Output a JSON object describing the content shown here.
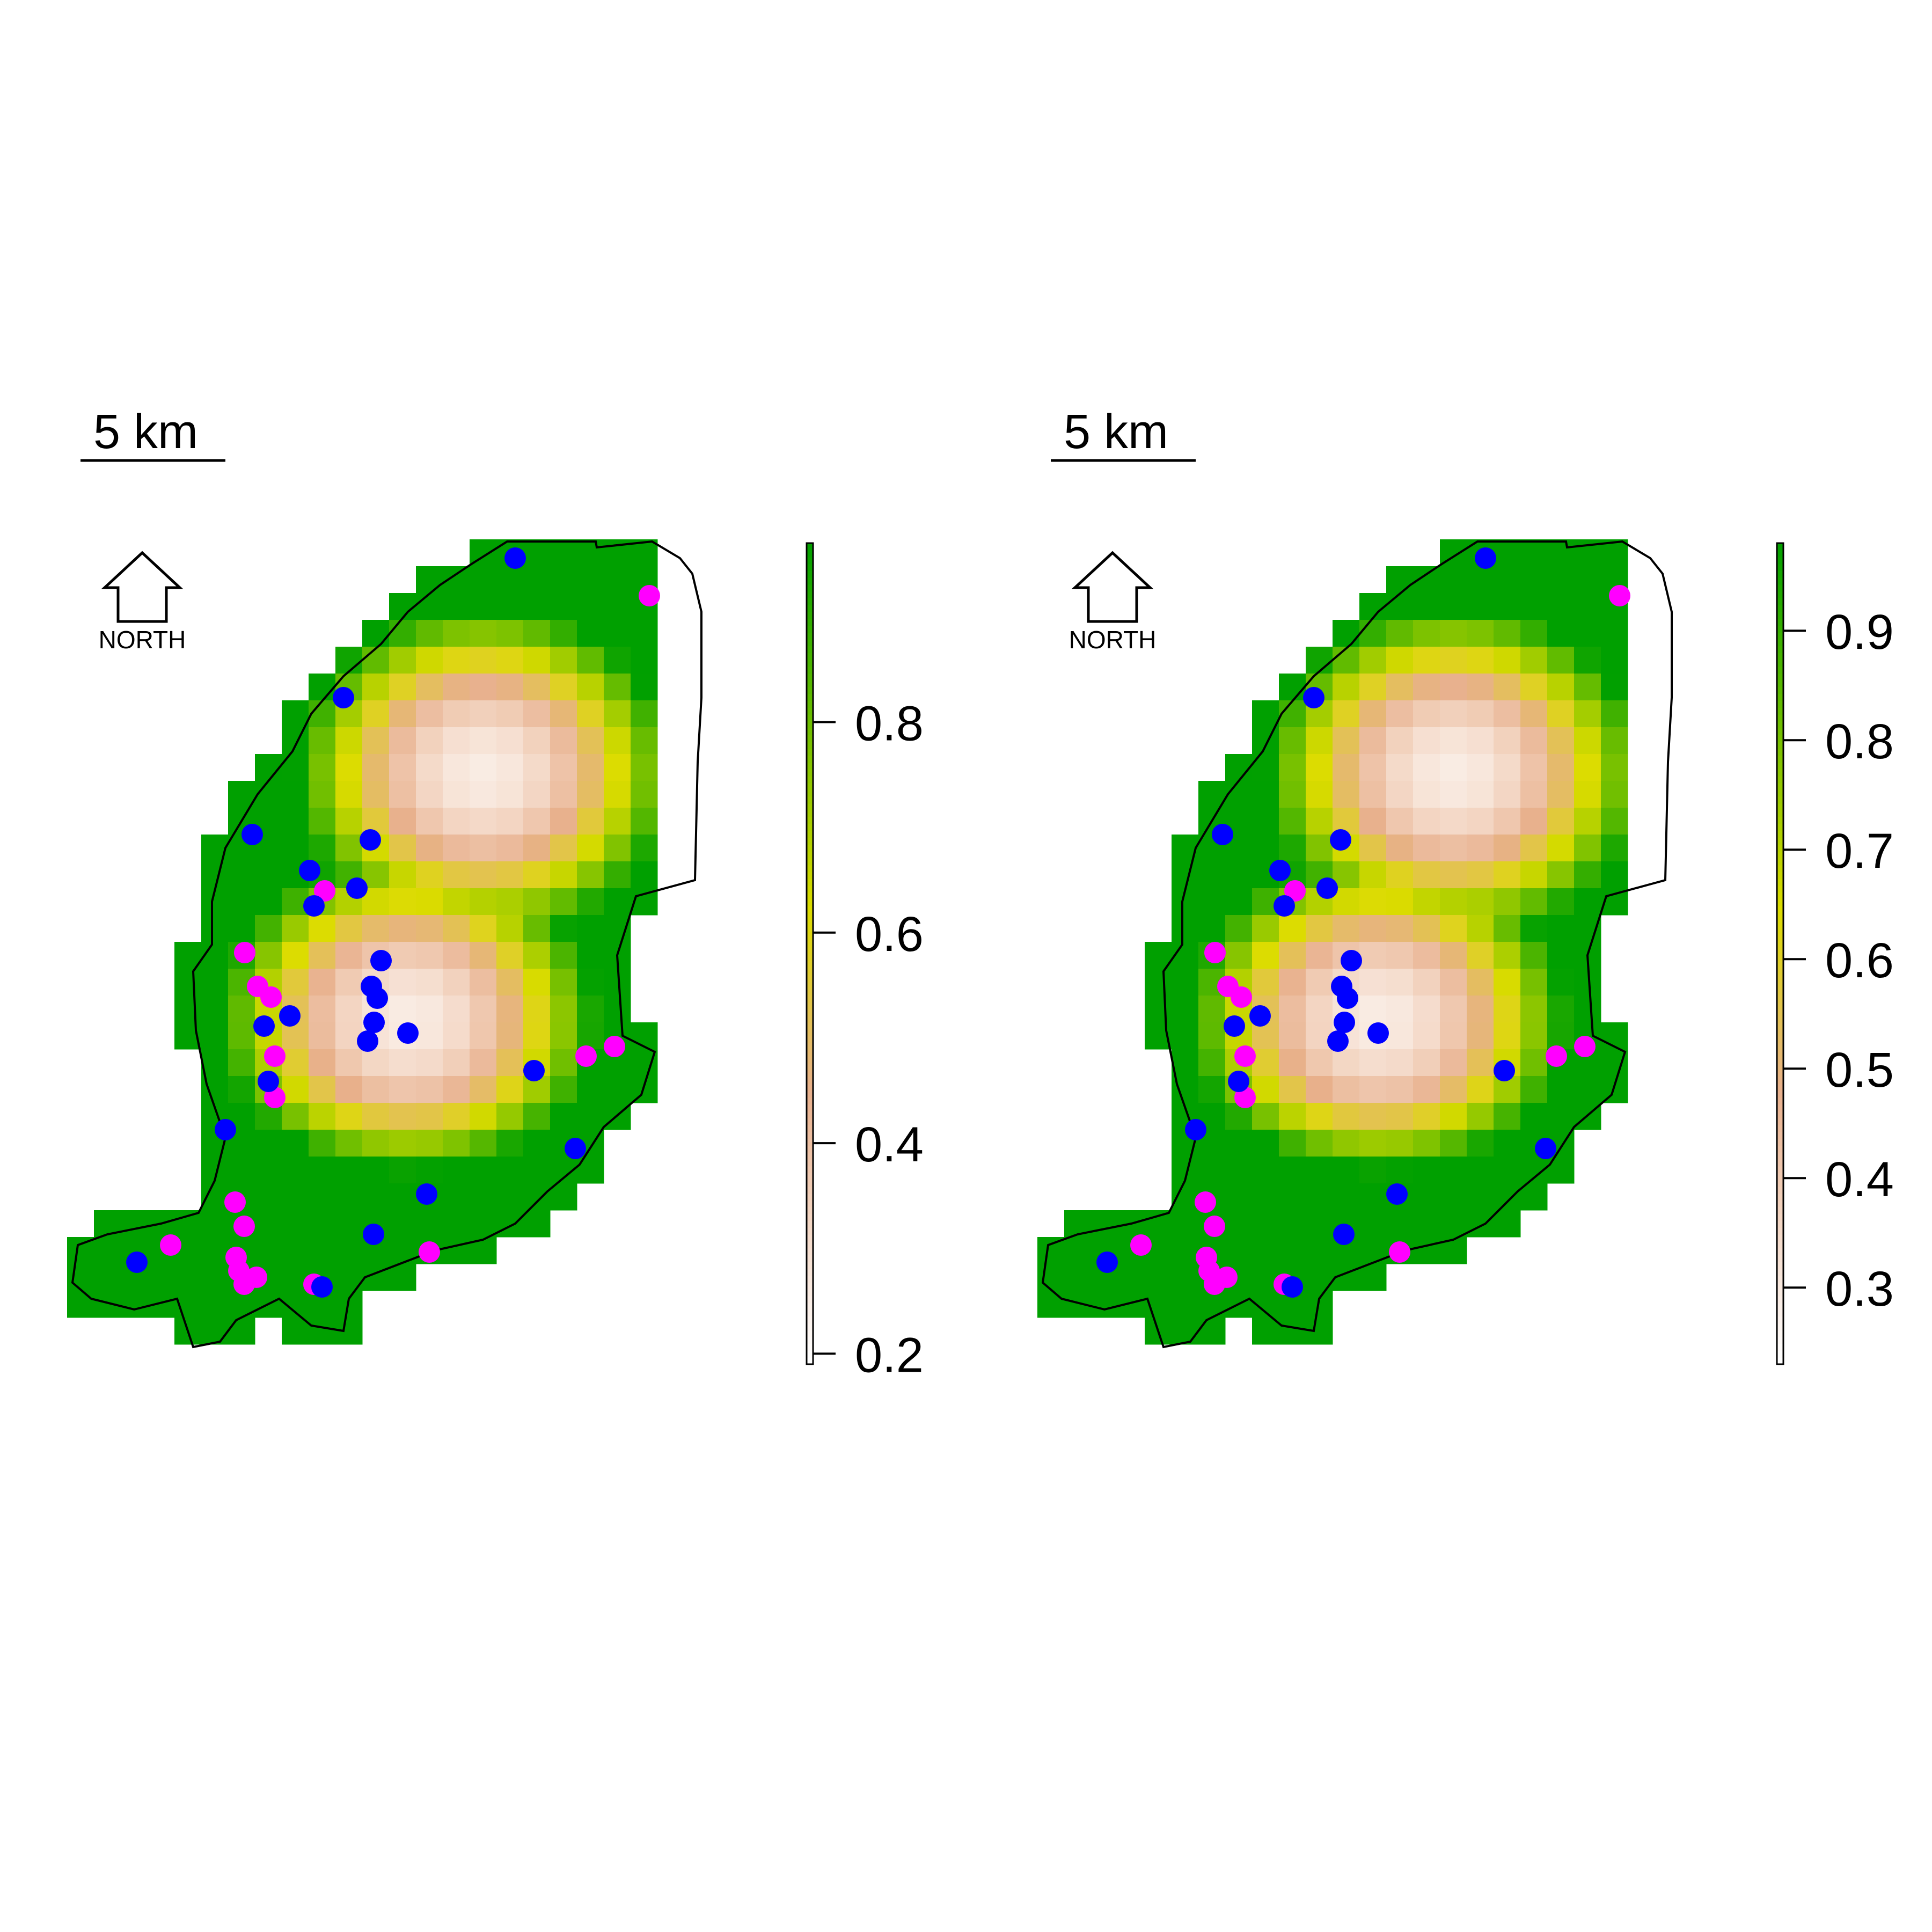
{
  "panels": [
    {
      "scale_bar_label": "5 km",
      "north_label": "NORTH",
      "legend_ticks": [
        "0.2",
        "0.4",
        "0.6",
        "0.8"
      ],
      "legend_range": [
        0.19,
        0.97
      ]
    },
    {
      "scale_bar_label": "5 km",
      "north_label": "NORTH",
      "legend_ticks": [
        "0.3",
        "0.4",
        "0.5",
        "0.6",
        "0.7",
        "0.8",
        "0.9"
      ],
      "legend_range": [
        0.23,
        0.98
      ]
    }
  ],
  "colors": {
    "low": "#ffffff",
    "mid_low": "#e8b08c",
    "mid": "#dcdc00",
    "high": "#00a000",
    "point_blue": "#0000ff",
    "point_magenta": "#ff00ff",
    "outline": "#000000"
  },
  "icons": [
    "north-arrow-icon"
  ]
}
